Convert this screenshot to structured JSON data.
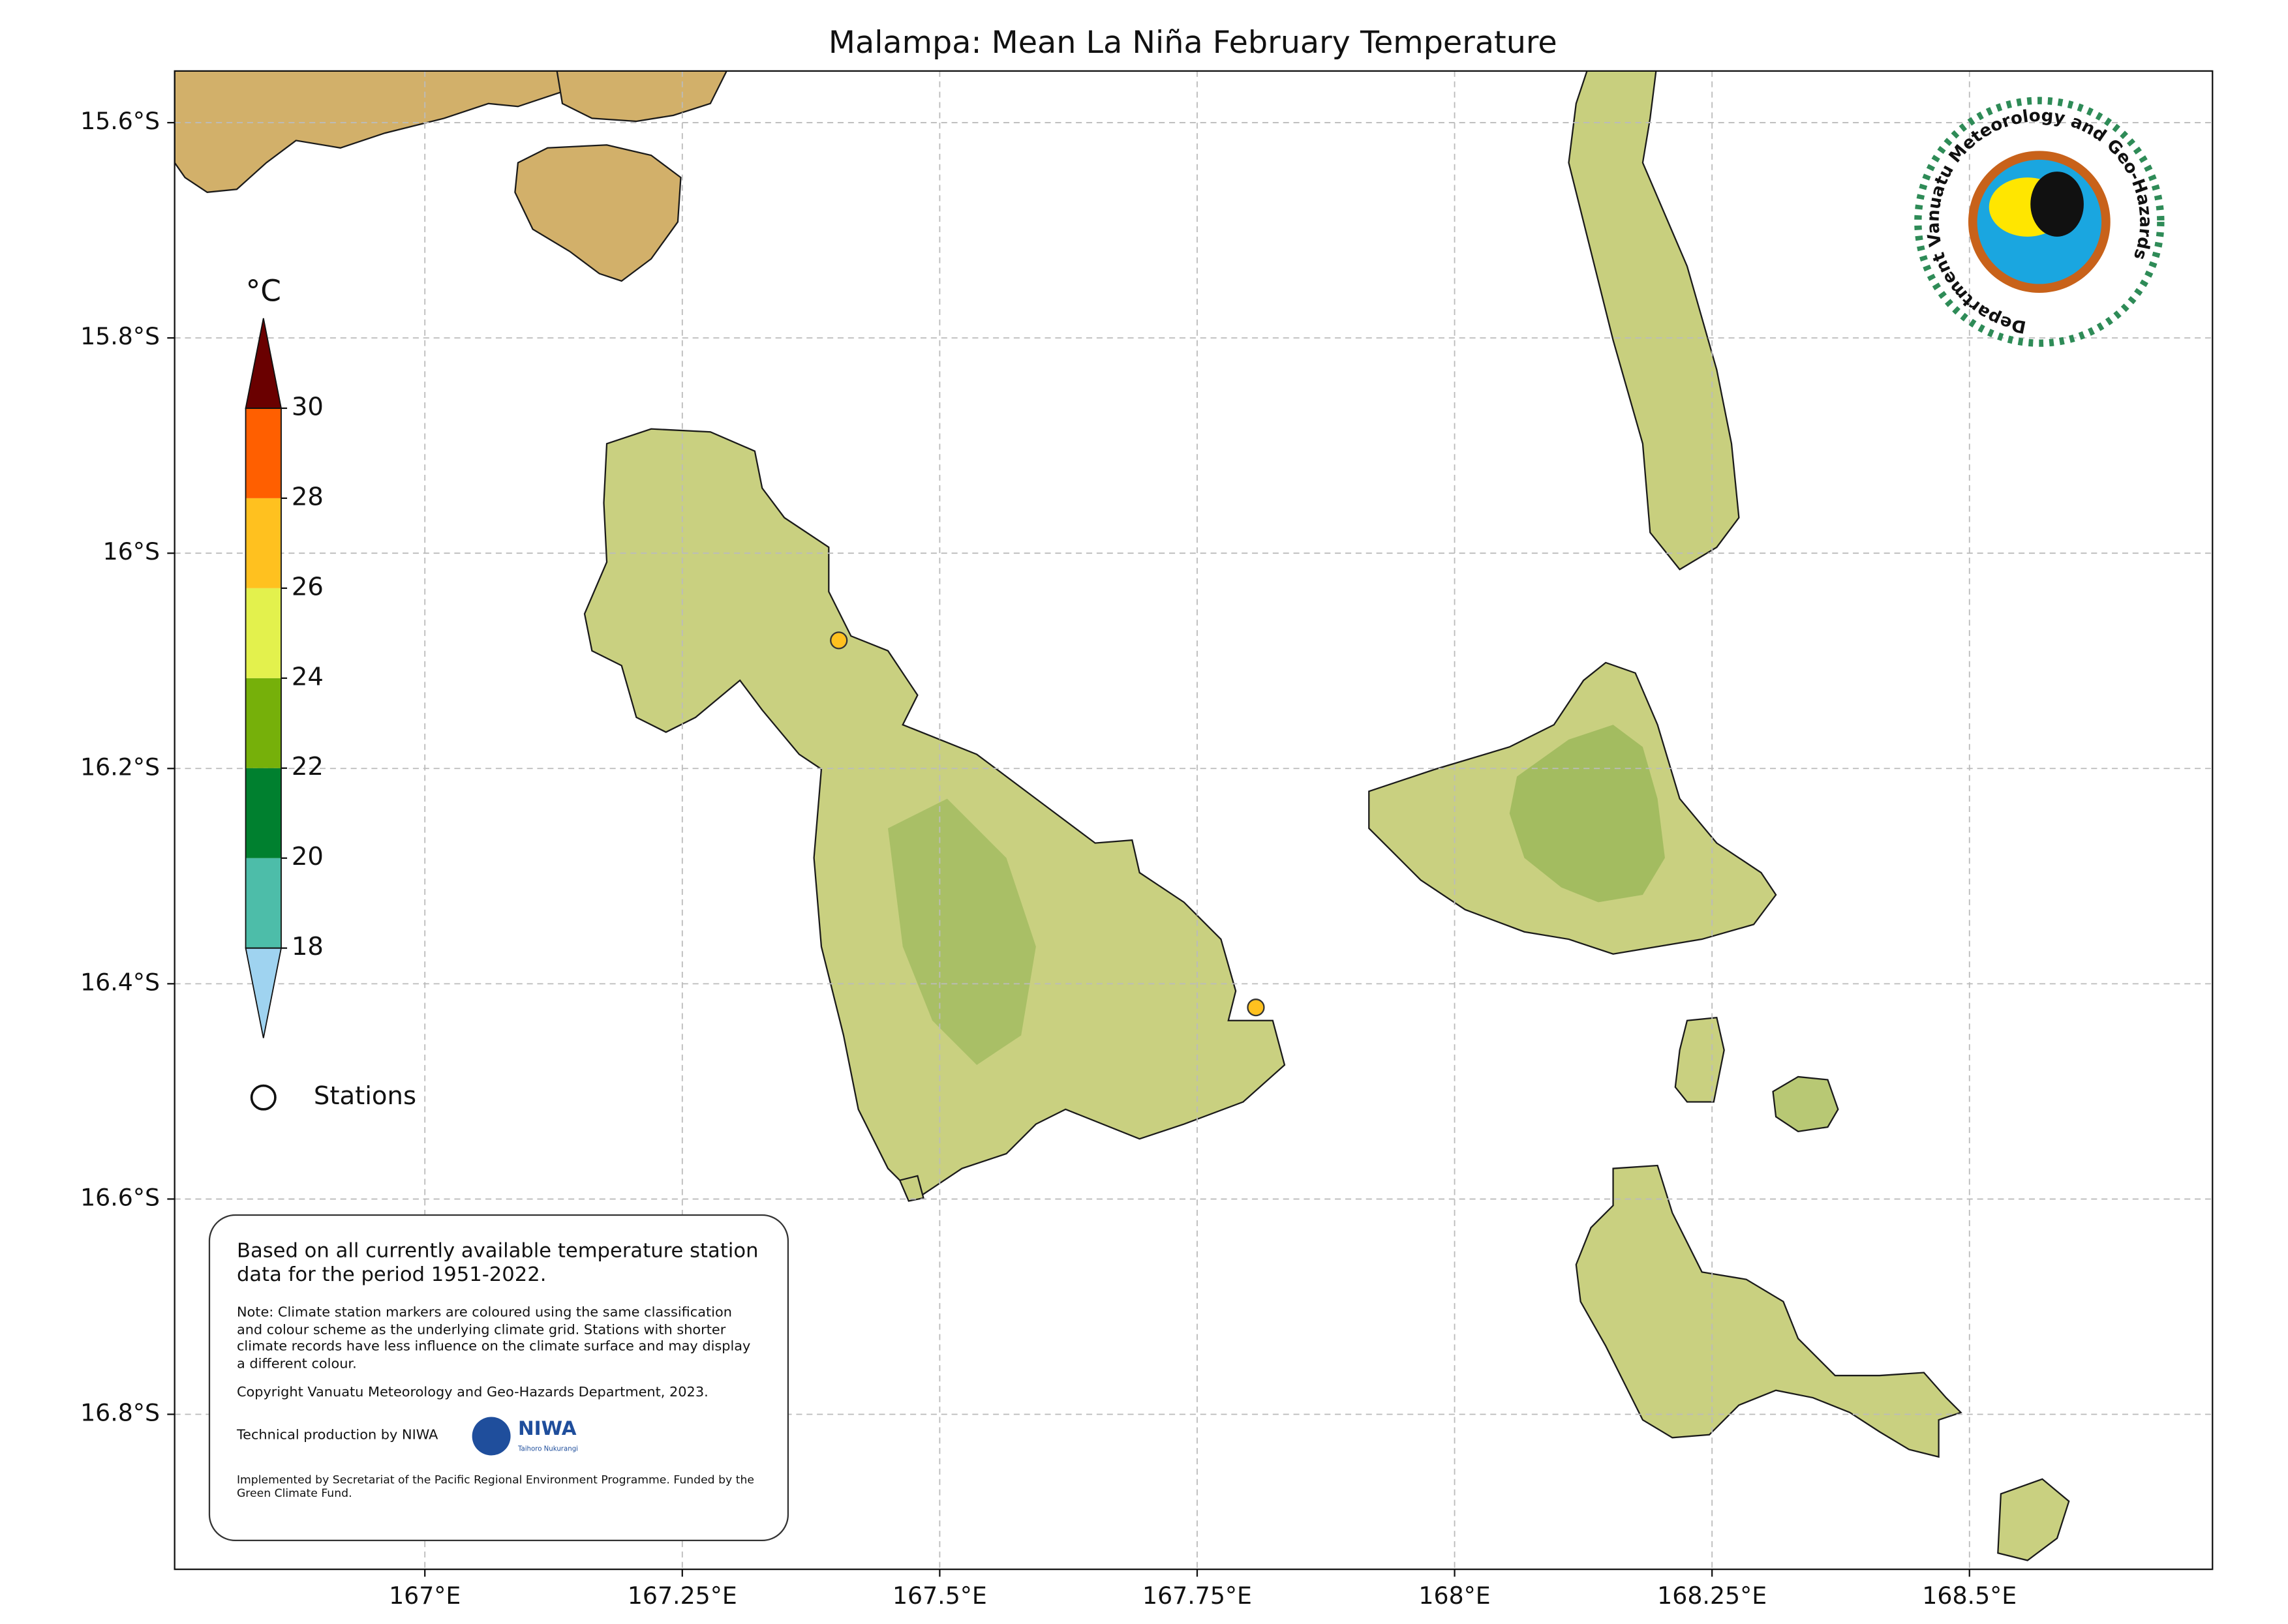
{
  "title": "Malampa: Mean La Niña February Temperature",
  "map": {
    "xlim": [
      166.757,
      168.736
    ],
    "ylim": [
      -16.944,
      -15.552
    ],
    "grid": true,
    "xticks": [
      {
        "value": 167,
        "label": "167°E"
      },
      {
        "value": 167.25,
        "label": "167.25°E"
      },
      {
        "value": 167.5,
        "label": "167.5°E"
      },
      {
        "value": 167.75,
        "label": "167.75°E"
      },
      {
        "value": 168,
        "label": "168°E"
      },
      {
        "value": 168.25,
        "label": "168.25°E"
      },
      {
        "value": 168.5,
        "label": "168.5°E"
      }
    ],
    "yticks": [
      {
        "value": -15.6,
        "label": "15.6°S"
      },
      {
        "value": -15.8,
        "label": "15.8°S"
      },
      {
        "value": -16,
        "label": "16°S"
      },
      {
        "value": -16.2,
        "label": "16.2°S"
      },
      {
        "value": -16.4,
        "label": "16.4°S"
      },
      {
        "value": -16.6,
        "label": "16.6°S"
      },
      {
        "value": -16.8,
        "label": "16.8°S"
      }
    ]
  },
  "colorbar": {
    "unit": "°C",
    "levels": [
      18,
      20,
      22,
      24,
      26,
      28,
      30
    ],
    "colors": [
      "#4dbda9",
      "#00802f",
      "#76b00a",
      "#e3f14d",
      "#ffc11f",
      "#ff5f00"
    ],
    "under_color": "#9fd3f0",
    "over_color": "#6a0000"
  },
  "stations": {
    "label": "Stations",
    "points": [
      {
        "lon": 167.402,
        "lat": -16.081,
        "color": "#ffc11f"
      },
      {
        "lon": 167.807,
        "lat": -16.422,
        "color": "#ffc11f"
      }
    ]
  },
  "logo": {
    "text": "Department Vanuatu Meteorology and Geo-Hazards"
  },
  "note": {
    "lead": "Based on all currently available temperature station data for the period 1951-2022.",
    "remark": "Note: Climate station markers are coloured using the same classification and colour scheme as the underlying climate grid. Stations with shorter climate records have less influence on the climate surface and may display a different colour.",
    "copyright": "Copyright Vanuatu Meteorology and Geo-Hazards Department, 2023.",
    "production": "Technical production by NIWA",
    "niwa": "NIWA",
    "niwa_tagline": "Taihoro Nukurangi",
    "funding": "Implemented by Secretariat of the Pacific Regional Environment Programme. Funded by the Green Climate Fund."
  }
}
